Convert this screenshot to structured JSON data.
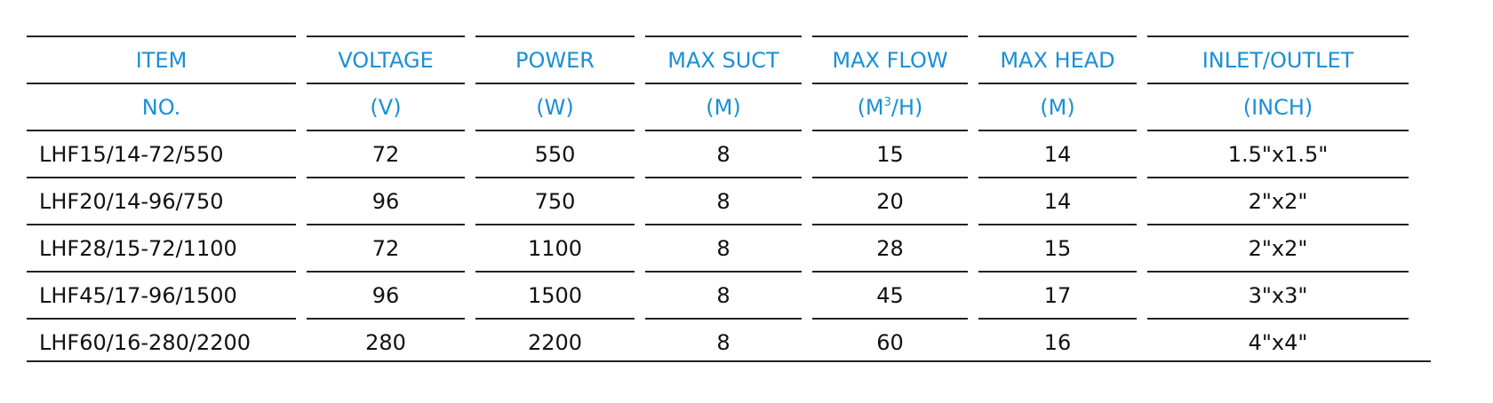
{
  "header_row1": [
    "ITEM",
    "VOLTAGE",
    "POWER",
    "MAX SUCT",
    "MAX FLOW",
    "MAX HEAD",
    "INLET/OUTLET"
  ],
  "header_row2": {
    "c1": "NO.",
    "c2": "(V)",
    "c3": "(W)",
    "c4": "(M)",
    "c5_pre": "(M",
    "c5_sup": "3",
    "c5_post": "/H)",
    "c6": "(M)",
    "c7": "(INCH)"
  },
  "rows": [
    [
      "LHF15/14-72/550",
      "72",
      "550",
      "8",
      "15",
      "14",
      "1.5\"x1.5\""
    ],
    [
      "LHF20/14-96/750",
      "96",
      "750",
      "8",
      "20",
      "14",
      "2\"x2\""
    ],
    [
      "LHF28/15-72/1100",
      "72",
      "1100",
      "8",
      "28",
      "15",
      "2\"x2\""
    ],
    [
      "LHF45/17-96/1500",
      "96",
      "1500",
      "8",
      "45",
      "17",
      "3\"x3\""
    ],
    [
      "LHF60/16-280/2200",
      "280",
      "2200",
      "8",
      "60",
      "16",
      "4\"x4\""
    ]
  ],
  "colors": {
    "header_text": "#1a8fd6",
    "body_text": "#111111",
    "rule": "#222222"
  }
}
